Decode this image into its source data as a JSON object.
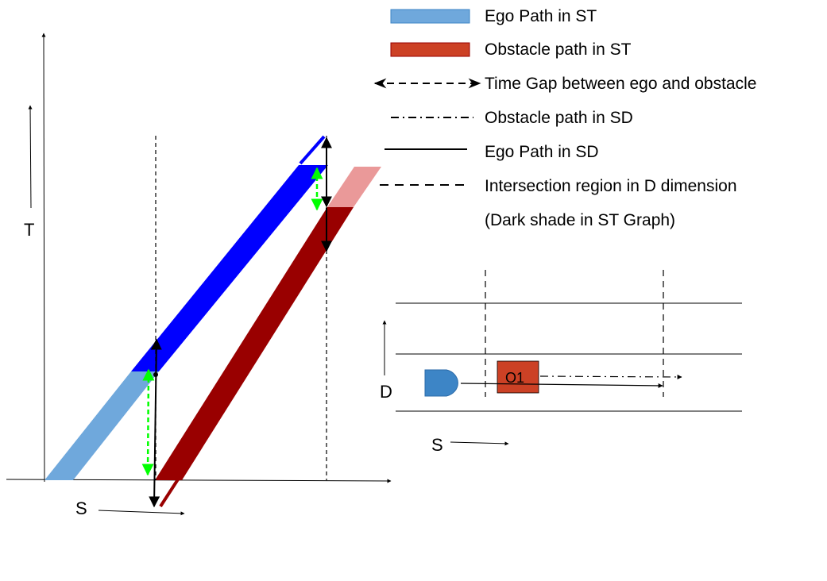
{
  "legend": {
    "items": [
      {
        "label": "Ego Path in ST",
        "swatch": "ego-st"
      },
      {
        "label": "Obstacle path in ST",
        "swatch": "obstacle-st"
      },
      {
        "label": "Time Gap between ego and obstacle",
        "swatch": "time-gap"
      },
      {
        "label": "Obstacle path in SD",
        "swatch": "obstacle-sd"
      },
      {
        "label": "Ego Path in SD",
        "swatch": "ego-sd"
      },
      {
        "label": "Intersection region in D dimension",
        "swatch": "intersection"
      }
    ],
    "note": "(Dark shade in ST Graph)"
  },
  "st_graph": {
    "t_axis_label": "T",
    "s_axis_label": "S"
  },
  "sd_graph": {
    "d_axis_label": "D",
    "s_axis_label": "S",
    "obstacle_label": "O1"
  },
  "colors": {
    "ego_light": "#6fa8dc",
    "ego_dark": "#0000ff",
    "obstacle_light": "#ea9999",
    "obstacle_dark": "#990000",
    "obstacle_box": "#cc4125",
    "ego_vehicle": "#3d85c6",
    "gap_highlight": "#00ff00",
    "line": "#000000"
  }
}
